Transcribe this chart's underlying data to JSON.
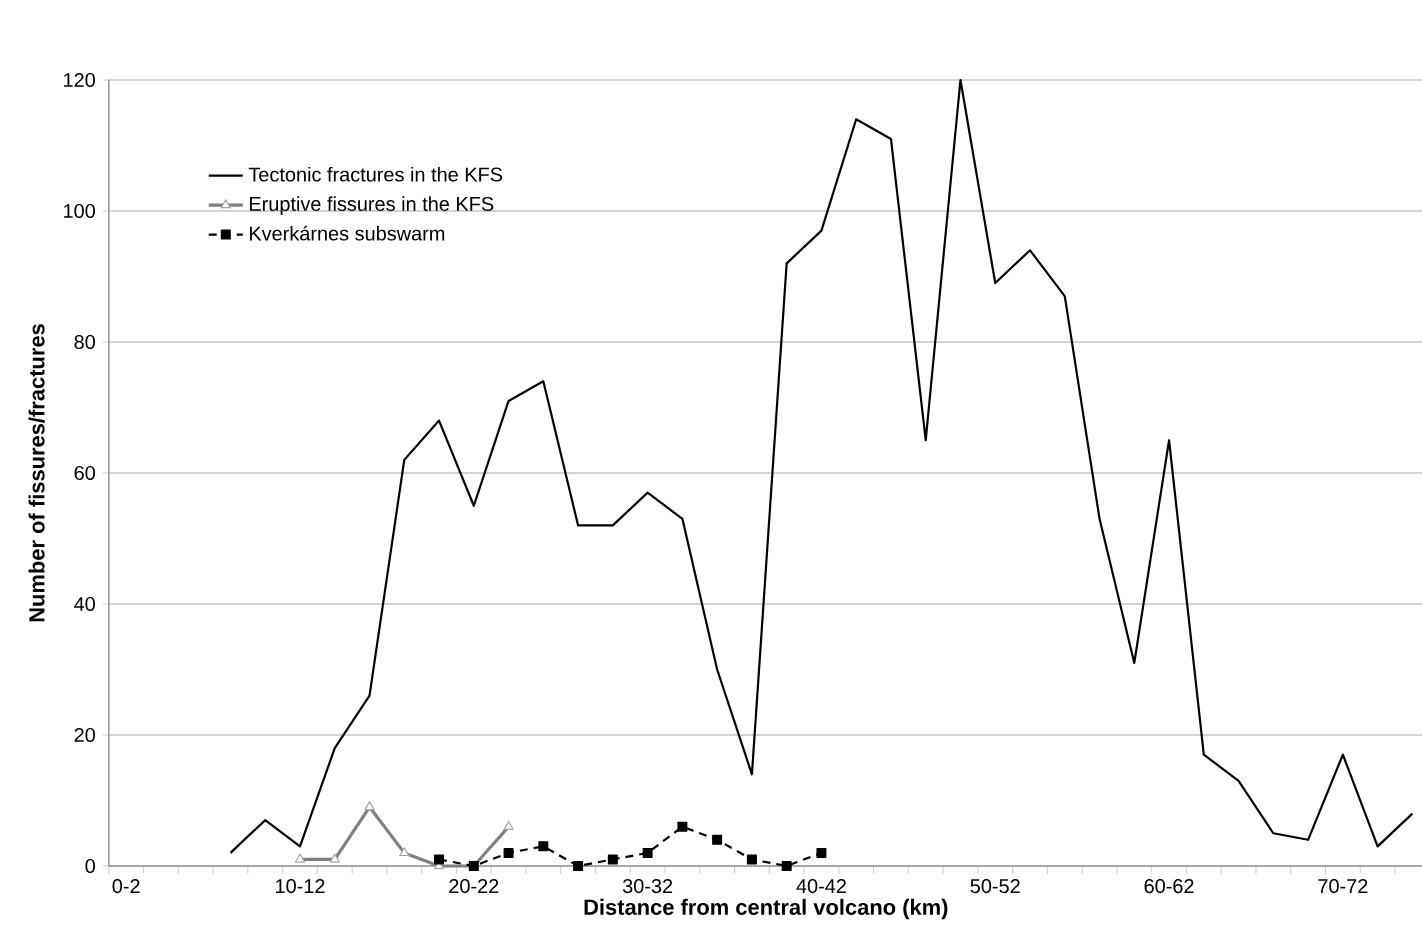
{
  "chart_data": {
    "type": "line",
    "xlabel": "Distance from central volcano (km)",
    "ylabel": "Number of fissures/fractures",
    "categories": [
      "0-2",
      null,
      null,
      null,
      null,
      "10-12",
      null,
      null,
      null,
      null,
      "20-22",
      null,
      null,
      null,
      null,
      "30-32",
      null,
      null,
      null,
      null,
      "40-42",
      null,
      null,
      null,
      null,
      "50-52",
      null,
      null,
      null,
      null,
      "60-62",
      null,
      null,
      null,
      null,
      "70-72",
      null,
      null
    ],
    "series": [
      {
        "name": "Tectonic fractures in the KFS",
        "color": "#000000",
        "marker": "none",
        "line_style": "solid",
        "values": [
          null,
          null,
          null,
          2,
          7,
          3,
          18,
          26,
          62,
          68,
          55,
          71,
          74,
          52,
          52,
          57,
          53,
          30,
          14,
          92,
          97,
          114,
          111,
          65,
          120,
          89,
          94,
          87,
          53,
          31,
          65,
          17,
          13,
          5,
          4,
          17,
          3,
          8
        ]
      },
      {
        "name": "Eruptive fissures in the KFS",
        "color": "#808080",
        "marker": "triangle",
        "line_style": "solid",
        "values": [
          null,
          null,
          null,
          null,
          null,
          1,
          1,
          9,
          2,
          0,
          0,
          6,
          null,
          null,
          null,
          null,
          null,
          null,
          null,
          null,
          null,
          null,
          null,
          null,
          null,
          null,
          null,
          null,
          null,
          null,
          null,
          null,
          null,
          null,
          null,
          null,
          null,
          null
        ]
      },
      {
        "name": "Kverkárnes subswarm",
        "color": "#000000",
        "marker": "square",
        "line_style": "dashed",
        "values": [
          null,
          null,
          null,
          null,
          null,
          null,
          null,
          null,
          null,
          1,
          0,
          2,
          3,
          0,
          1,
          2,
          6,
          4,
          1,
          0,
          2,
          null,
          null,
          null,
          null,
          null,
          null,
          null,
          null,
          null,
          null,
          null,
          null,
          null,
          null,
          null,
          null,
          null
        ]
      }
    ],
    "ylim": [
      0,
      120
    ],
    "yticks": [
      0,
      20,
      40,
      60,
      80,
      100,
      120
    ],
    "grid": "y",
    "legend": "top left"
  }
}
